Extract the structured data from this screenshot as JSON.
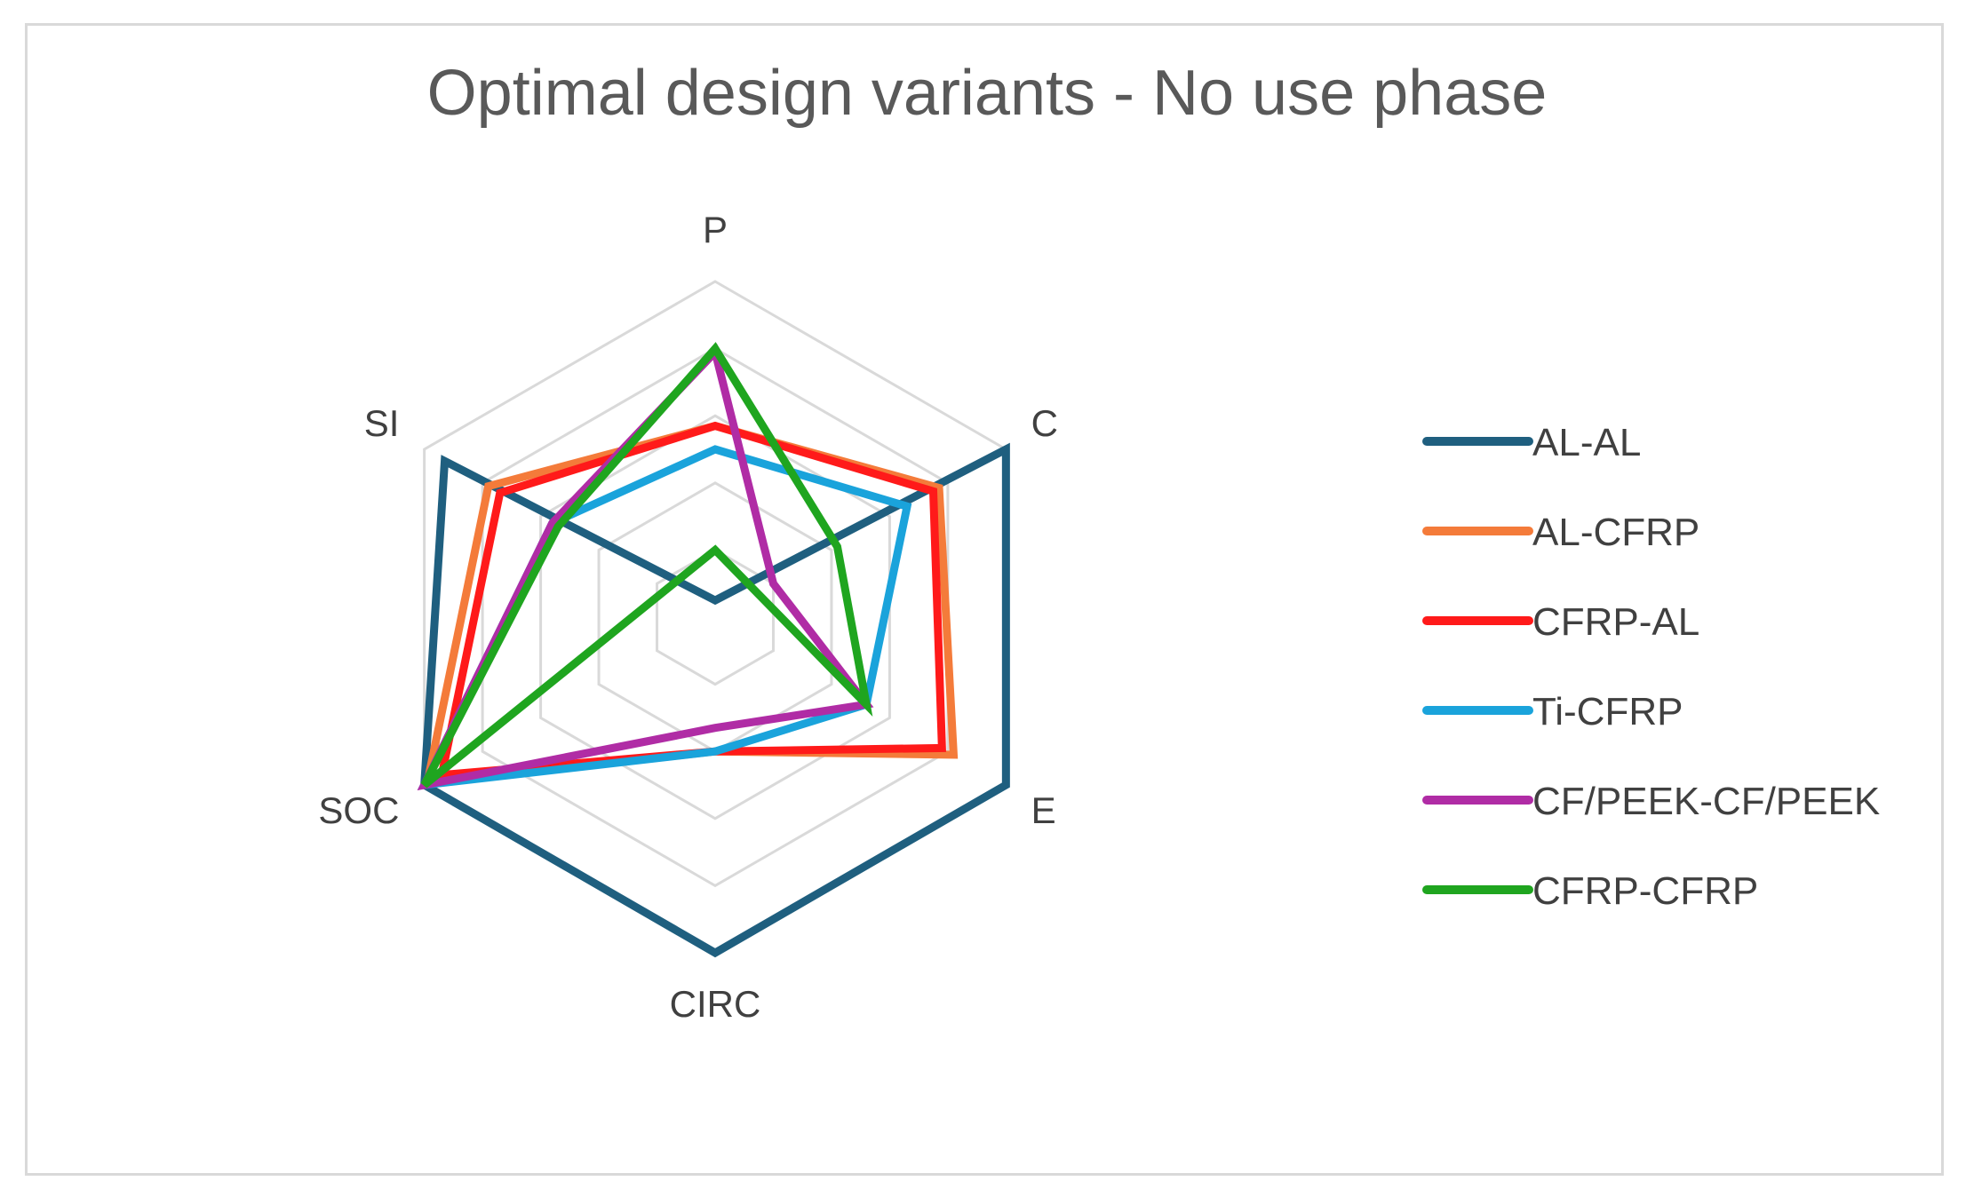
{
  "chart_data": {
    "type": "radar",
    "title": "Optimal design variants - No use phase",
    "axes": [
      "P",
      "C",
      "E",
      "CIRC",
      "SOC",
      "SI"
    ],
    "range": [
      0,
      1
    ],
    "rings": 5,
    "grid": true,
    "legend_position": "right",
    "series": [
      {
        "name": "AL-AL",
        "color": "#1f5f7f",
        "values": [
          0.05,
          1.0,
          1.0,
          1.0,
          1.0,
          0.93
        ]
      },
      {
        "name": "AL-CFRP",
        "color": "#f47b3a",
        "values": [
          0.57,
          0.77,
          0.82,
          0.4,
          0.99,
          0.78
        ]
      },
      {
        "name": "CFRP-AL",
        "color": "#ff1a1a",
        "values": [
          0.57,
          0.75,
          0.78,
          0.4,
          0.94,
          0.74
        ]
      },
      {
        "name": "Ti-CFRP",
        "color": "#1aa3db",
        "values": [
          0.5,
          0.66,
          0.52,
          0.4,
          1.0,
          0.56
        ]
      },
      {
        "name": "CF/PEEK-CF/PEEK",
        "color": "#b02ca5",
        "values": [
          0.79,
          0.2,
          0.52,
          0.33,
          1.0,
          0.56
        ]
      },
      {
        "name": "CFRP-CFRP",
        "color": "#1fa51f",
        "values": [
          0.8,
          0.42,
          0.52,
          -0.2,
          1.0,
          0.54
        ]
      }
    ]
  }
}
